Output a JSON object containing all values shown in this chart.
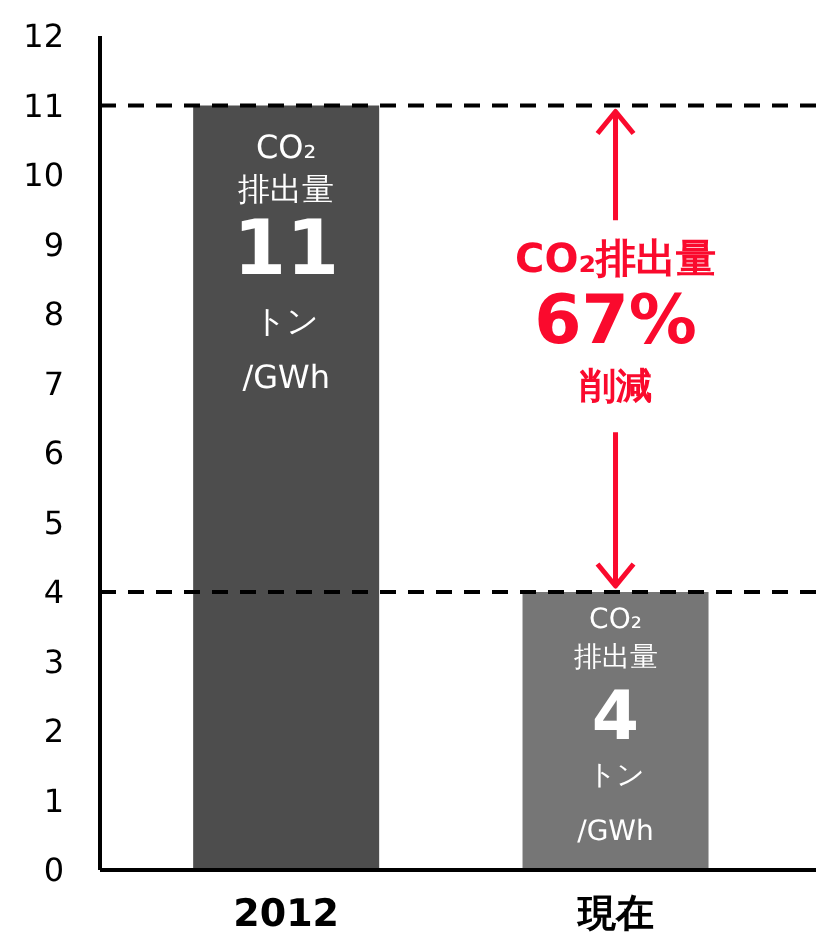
{
  "chart_data": {
    "type": "bar",
    "categories": [
      "2012",
      "現在"
    ],
    "values": [
      11,
      4
    ],
    "colors": [
      "#4d4d4d",
      "#767676"
    ],
    "value_labels": [
      "11",
      "4"
    ],
    "ylim": [
      0,
      12
    ],
    "yticks": [
      0,
      1,
      2,
      3,
      4,
      5,
      6,
      7,
      8,
      9,
      10,
      11,
      12
    ],
    "grid": false,
    "ref_lines": [
      {
        "axis": "y",
        "value": 11,
        "color": "#000000",
        "line_style": "dashed"
      },
      {
        "axis": "y",
        "value": 4,
        "color": "#000000",
        "line_style": "dashed"
      }
    ],
    "annotations": [
      "CO₂",
      "排出量",
      "トン",
      "/GWh",
      "CO₂",
      "排出量",
      "トン",
      "/GWh",
      {
        "text": "CO₂排出量",
        "x": "現在",
        "y": 11
      },
      "67%",
      {
        "text": "削減",
        "x": "現在",
        "y": 4
      }
    ]
  }
}
